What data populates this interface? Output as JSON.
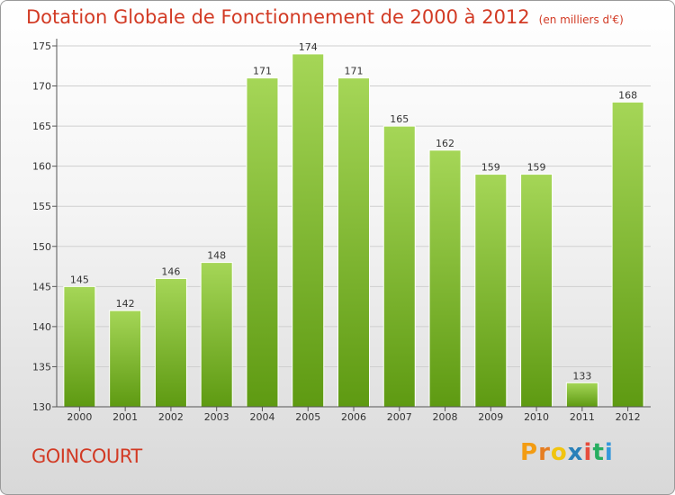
{
  "header": {
    "title": "Dotation Globale de Fonctionnement de 2000 à 2012",
    "unit": "(en milliers d'€)"
  },
  "footer": {
    "commune": "GOINCOURT",
    "brand": "Proxiti"
  },
  "colors": {
    "title": "#d23a24",
    "bar_top": "#a5d657",
    "bar_bottom": "#5e9a12",
    "brand_letters": [
      "#f39c12",
      "#e67e22",
      "#f1c40f",
      "#2980b9",
      "#e74c3c",
      "#27ae60",
      "#3498db"
    ]
  },
  "chart_data": {
    "type": "bar",
    "title": "Dotation Globale de Fonctionnement de 2000 à 2012",
    "unit_label": "(en milliers d'€)",
    "xlabel": "",
    "ylabel": "",
    "categories": [
      "2000",
      "2001",
      "2002",
      "2003",
      "2004",
      "2005",
      "2006",
      "2007",
      "2008",
      "2009",
      "2010",
      "2011",
      "2012"
    ],
    "values": [
      145,
      142,
      146,
      148,
      171,
      174,
      171,
      165,
      162,
      159,
      159,
      133,
      168
    ],
    "ylim": [
      130,
      175
    ],
    "yticks": [
      130,
      135,
      140,
      145,
      150,
      155,
      160,
      165,
      170,
      175
    ],
    "grid": true,
    "data_labels": true
  }
}
